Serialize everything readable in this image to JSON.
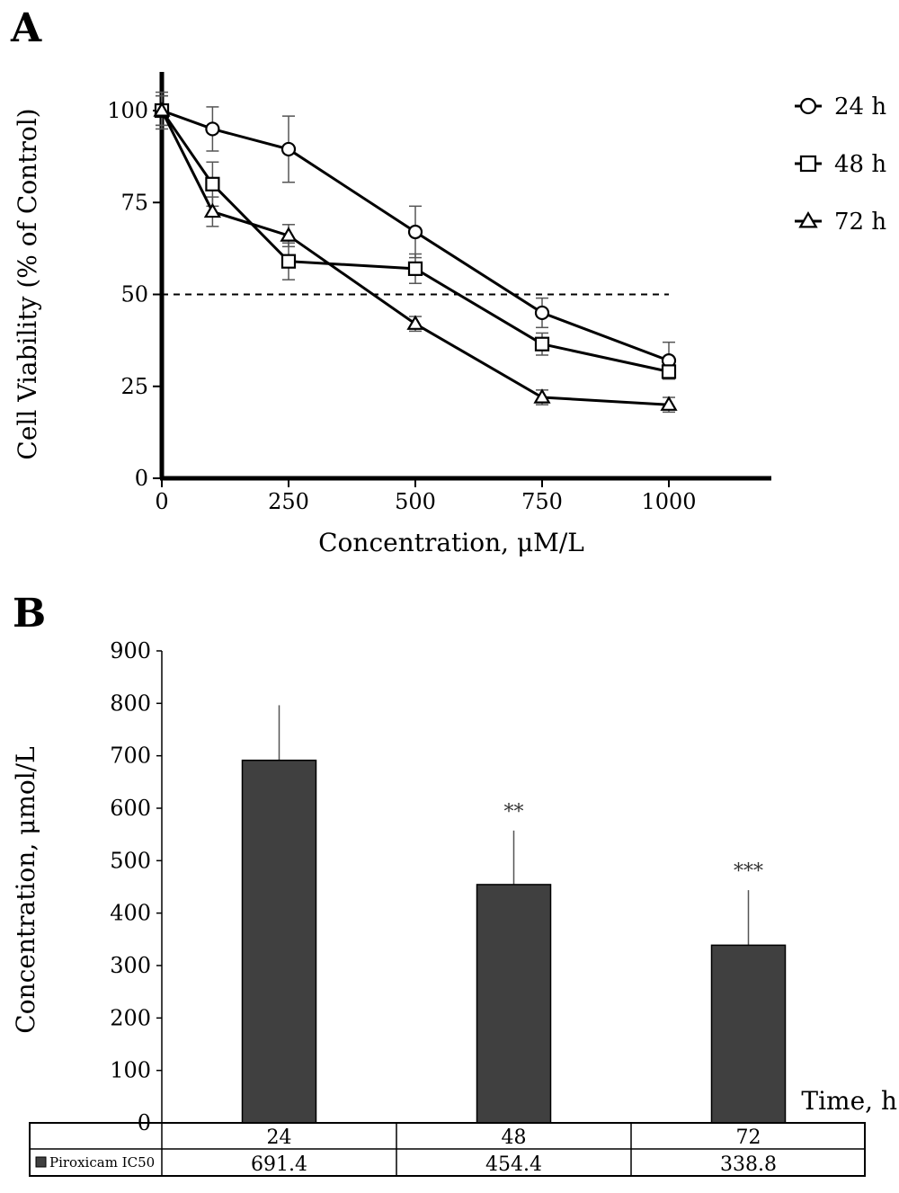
{
  "chart_data": [
    {
      "panel": "A",
      "type": "line",
      "title": "",
      "xlabel": "Concentration, μM/L",
      "ylabel": "Cell Viability (% of Control)",
      "xlim": [
        0,
        1200
      ],
      "ylim": [
        0,
        110
      ],
      "xticks": [
        0,
        250,
        500,
        750,
        1000
      ],
      "xtick_labels": [
        "0",
        "250",
        "500",
        "750",
        "1000"
      ],
      "yticks": [
        0,
        25,
        50,
        75,
        100
      ],
      "ytick_labels": [
        "0",
        "25",
        "50",
        "75",
        "100"
      ],
      "x": [
        0,
        100,
        250,
        500,
        750,
        1000
      ],
      "reference_line": {
        "y": 50,
        "style": "dashed",
        "x_range": [
          0,
          1000
        ]
      },
      "legend_position": "right",
      "series": [
        {
          "name": "24 h",
          "marker": "circle",
          "values": [
            100,
            95,
            89.5,
            67,
            45,
            32
          ],
          "errors": [
            5,
            6,
            9,
            7,
            4,
            5
          ]
        },
        {
          "name": "48 h",
          "marker": "square",
          "values": [
            100,
            80,
            59,
            57,
            36.5,
            29
          ],
          "errors": [
            4,
            6,
            5,
            4,
            3,
            2
          ]
        },
        {
          "name": "72 h",
          "marker": "triangle",
          "values": [
            100,
            72.5,
            66,
            42,
            22,
            20
          ],
          "errors": [
            4,
            4,
            3,
            2,
            2,
            2
          ]
        }
      ]
    },
    {
      "panel": "B",
      "type": "bar",
      "title": "",
      "xlabel": "Time, h",
      "ylabel": "Concentration, μmol/L",
      "ylim": [
        0,
        900
      ],
      "yticks": [
        0,
        100,
        200,
        300,
        400,
        500,
        600,
        700,
        800,
        900
      ],
      "ytick_labels": [
        "0",
        "100",
        "200",
        "300",
        "400",
        "500",
        "600",
        "700",
        "800",
        "900"
      ],
      "categories": [
        "24",
        "48",
        "72"
      ],
      "series": [
        {
          "name": "Piroxicam IC50",
          "values": [
            691.4,
            454.4,
            338.8
          ],
          "value_labels": [
            "691.4",
            "454.4",
            "338.8"
          ],
          "errors": [
            105,
            103,
            105
          ],
          "significance": [
            "",
            "**",
            "***"
          ]
        }
      ]
    }
  ],
  "colors": {
    "bar_fill": "#404040",
    "line": "#000000",
    "error_bar": "#555555"
  },
  "panel_labels": [
    "A",
    "B"
  ]
}
